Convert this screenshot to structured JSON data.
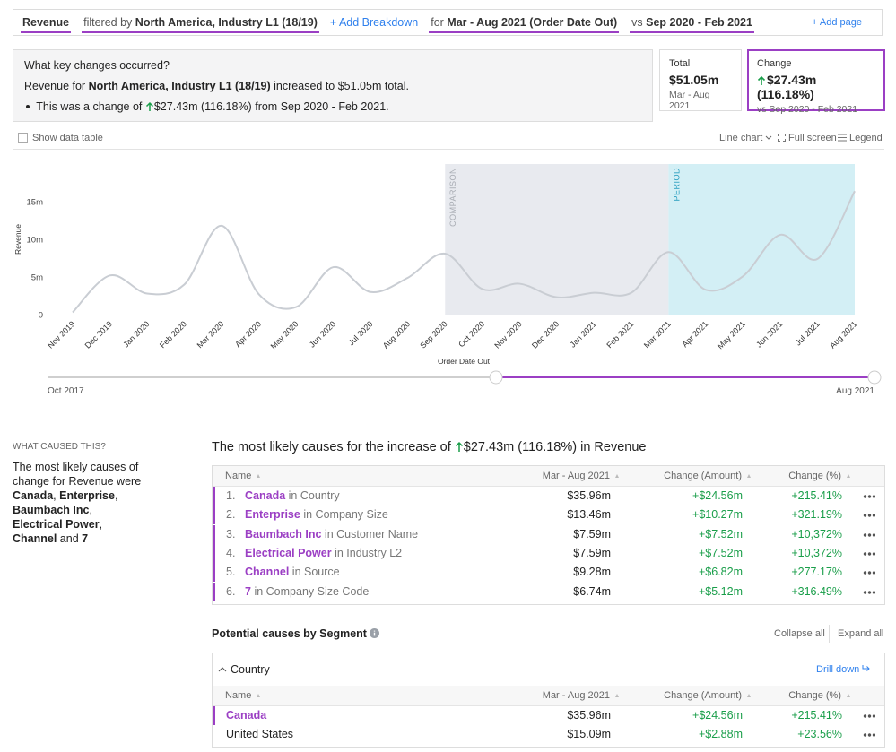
{
  "header": {
    "metric": "Revenue",
    "filter_prefix": "filtered by",
    "filter": "North America, Industry L1 (18/19)",
    "add_breakdown": "+ Add Breakdown",
    "period_prefix": "for",
    "period": "Mar - Aug 2021 (Order Date Out)",
    "compare_prefix": "vs",
    "compare": "Sep 2020 - Feb 2021",
    "add_page": "+ Add page"
  },
  "summary": {
    "question": "What key changes occurred?",
    "line1": {
      "prefix": "Revenue for",
      "subject": "North America, Industry L1 (18/19)",
      "suffix": "increased to $51.05m total."
    },
    "line2": {
      "prefix": "This was a change of",
      "change": "$27.43m (116.18%)",
      "suffix": "from Sep 2020 - Feb 2021."
    }
  },
  "kpis": {
    "total": {
      "label": "Total",
      "value": "$51.05m",
      "period": "Mar - Aug 2021"
    },
    "change": {
      "label": "Change",
      "value": "$27.43m (116.18%)",
      "period": "vs Sep 2020 - Feb 2021"
    }
  },
  "toolbar": {
    "show_data_table": "Show data table",
    "chart_type": "Line chart",
    "full_screen": "Full screen",
    "legend": "Legend"
  },
  "chart_data": {
    "type": "line",
    "categories": [
      "Nov 2019",
      "Dec 2019",
      "Jan 2020",
      "Feb 2020",
      "Mar 2020",
      "Apr 2020",
      "May 2020",
      "Jun 2020",
      "Jul 2020",
      "Aug 2020",
      "Sep 2020",
      "Oct 2020",
      "Nov 2020",
      "Dec 2020",
      "Jan 2021",
      "Feb 2021",
      "Mar 2021",
      "Apr 2021",
      "May 2021",
      "Jun 2021",
      "Jul 2021",
      "Aug 2021"
    ],
    "values": [
      0.3,
      5.2,
      2.8,
      4.0,
      11.8,
      2.7,
      1.0,
      6.3,
      3.0,
      4.9,
      8.1,
      3.4,
      4.1,
      2.3,
      2.9,
      2.9,
      8.3,
      3.3,
      5.1,
      10.6,
      7.4,
      16.4
    ],
    "color": "#c9cdd3",
    "y_label": "Revenue",
    "x_label": "Order Date Out",
    "ylim": [
      0,
      20
    ],
    "yticks": [
      0,
      {
        "value": 5,
        "label": "5m"
      },
      {
        "value": 10,
        "label": "10m"
      },
      {
        "value": 15,
        "label": "15m"
      }
    ],
    "grid": false,
    "regions": [
      {
        "label": "COMPARISON",
        "start": "Sep 2020",
        "end": "Mar 2021",
        "color": "#e8eaef",
        "label_color": "#a9adb4"
      },
      {
        "label": "PERIOD",
        "start": "Mar 2021",
        "end": "Aug 2021",
        "color": "#d3eff5",
        "label_color": "#2a9fc0"
      }
    ]
  },
  "range_slider": {
    "start": "Oct 2017",
    "end": "Aug 2021"
  },
  "causes": {
    "heading": "WHAT CAUSED THIS?",
    "summary": {
      "intro": "The most likely causes of change for Revenue were",
      "items": [
        "Canada",
        "Enterprise",
        "Baumbach Inc",
        "Electrical Power",
        "Channel",
        "7"
      ],
      "separator": ",",
      "conjunction": "and"
    },
    "title": {
      "prefix": "The most likely causes for the increase of",
      "change": "$27.43m (116.18%)",
      "suffix": "in Revenue"
    },
    "columns": [
      "Name",
      "Mar - Aug 2021",
      "Change (Amount)",
      "Change (%)"
    ],
    "rows": [
      {
        "rank": "1.",
        "name": "Canada",
        "in": "in",
        "dimension": "Country",
        "amount": "$35.96m",
        "change": "+$24.56m",
        "pct": "+215.41%"
      },
      {
        "rank": "2.",
        "name": "Enterprise",
        "in": "in",
        "dimension": "Company Size",
        "amount": "$13.46m",
        "change": "+$10.27m",
        "pct": "+321.19%"
      },
      {
        "rank": "3.",
        "name": "Baumbach Inc",
        "in": "in",
        "dimension": "Customer Name",
        "amount": "$7.59m",
        "change": "+$7.52m",
        "pct": "+10,372%"
      },
      {
        "rank": "4.",
        "name": "Electrical Power",
        "in": "in",
        "dimension": "Industry L2",
        "amount": "$7.59m",
        "change": "+$7.52m",
        "pct": "+10,372%"
      },
      {
        "rank": "5.",
        "name": "Channel",
        "in": "in",
        "dimension": "Source",
        "amount": "$9.28m",
        "change": "+$6.82m",
        "pct": "+277.17%"
      },
      {
        "rank": "6.",
        "name": "7",
        "in": "in",
        "dimension": "Company Size Code",
        "amount": "$6.74m",
        "change": "+$5.12m",
        "pct": "+316.49%"
      }
    ]
  },
  "segments": {
    "title": "Potential causes by Segment",
    "collapse_all": "Collapse all",
    "expand_all": "Expand all",
    "group": {
      "name": "Country",
      "drill_down": "Drill down",
      "columns": [
        "Name",
        "Mar - Aug 2021",
        "Change (Amount)",
        "Change (%)"
      ],
      "rows": [
        {
          "name": "Canada",
          "amount": "$35.96m",
          "change": "+$24.56m",
          "pct": "+215.41%"
        },
        {
          "name": "United States",
          "amount": "$15.09m",
          "change": "+$2.88m",
          "pct": "+23.56%"
        }
      ]
    }
  }
}
